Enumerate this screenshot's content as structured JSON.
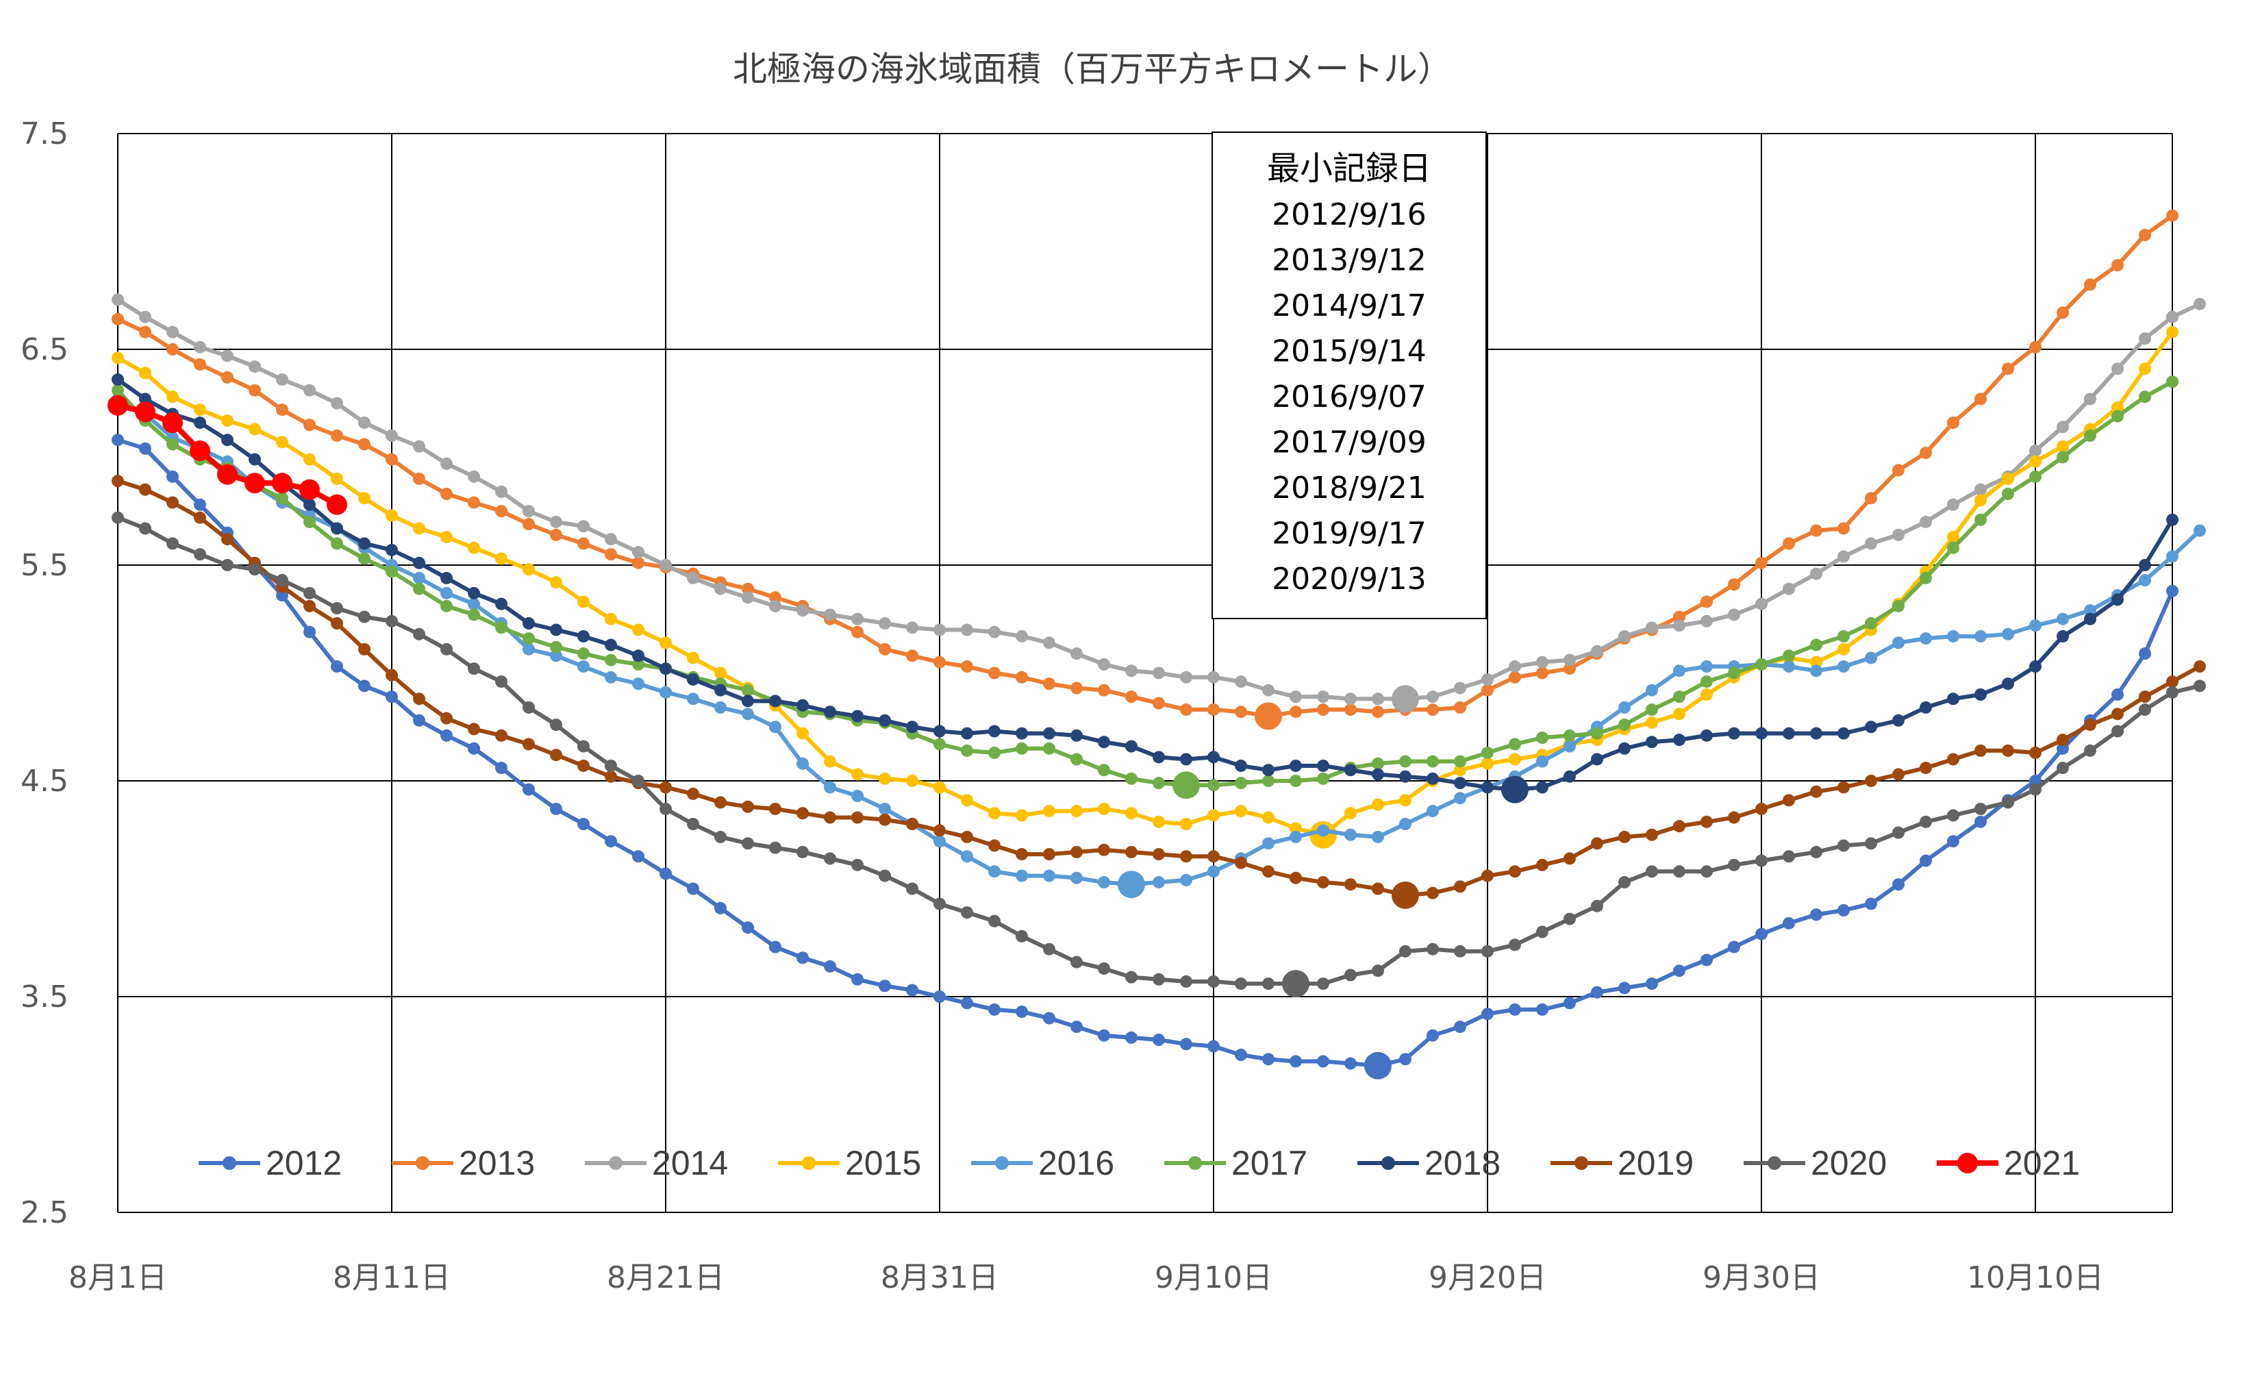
{
  "chart_data": {
    "type": "line",
    "title": "北極海の海氷域面積（百万平方キロメートル）",
    "ylim": [
      2.5,
      7.5
    ],
    "yticks": [
      "2.5",
      "3.5",
      "4.5",
      "5.5",
      "6.5",
      "7.5"
    ],
    "xticks": [
      "8月1日",
      "8月11日",
      "8月21日",
      "8月31日",
      "9月10日",
      "9月20日",
      "9月30日",
      "10月10日"
    ],
    "x_range": [
      0,
      75
    ],
    "grid": true,
    "legend_position": "bottom",
    "annotation": {
      "title": "最小記録日",
      "lines": [
        "2012/9/16",
        "2013/9/12",
        "2014/9/17",
        "2015/9/14",
        "2016/9/07",
        "2017/9/09",
        "2018/9/21",
        "2019/9/17",
        "2020/9/13"
      ]
    },
    "series": [
      {
        "name": "2012",
        "color": "#4472C4",
        "min_day": 46,
        "values": [
          6.08,
          6.04,
          5.91,
          5.78,
          5.65,
          5.5,
          5.36,
          5.19,
          5.03,
          4.94,
          4.89,
          4.78,
          4.71,
          4.65,
          4.56,
          4.46,
          4.37,
          4.3,
          4.22,
          4.15,
          4.07,
          4.0,
          3.91,
          3.82,
          3.73,
          3.68,
          3.64,
          3.58,
          3.55,
          3.53,
          3.5,
          3.47,
          3.44,
          3.43,
          3.4,
          3.36,
          3.32,
          3.31,
          3.3,
          3.28,
          3.27,
          3.23,
          3.21,
          3.2,
          3.2,
          3.19,
          3.18,
          3.21,
          3.32,
          3.36,
          3.42,
          3.44,
          3.44,
          3.47,
          3.52,
          3.54,
          3.56,
          3.62,
          3.67,
          3.73,
          3.79,
          3.84,
          3.88,
          3.9,
          3.93,
          4.02,
          4.13,
          4.22,
          4.31,
          4.41,
          4.5,
          4.65,
          4.78,
          4.9,
          5.09,
          5.38
        ]
      },
      {
        "name": "2013",
        "color": "#ED7D31",
        "min_day": 42,
        "values": [
          6.64,
          6.58,
          6.5,
          6.43,
          6.37,
          6.31,
          6.22,
          6.15,
          6.1,
          6.06,
          5.99,
          5.9,
          5.83,
          5.79,
          5.75,
          5.69,
          5.64,
          5.6,
          5.55,
          5.51,
          5.49,
          5.46,
          5.42,
          5.39,
          5.35,
          5.31,
          5.25,
          5.19,
          5.11,
          5.08,
          5.05,
          5.03,
          5.0,
          4.98,
          4.95,
          4.93,
          4.92,
          4.89,
          4.86,
          4.83,
          4.83,
          4.82,
          4.8,
          4.82,
          4.83,
          4.83,
          4.82,
          4.83,
          4.83,
          4.84,
          4.92,
          4.98,
          5.0,
          5.02,
          5.09,
          5.16,
          5.2,
          5.26,
          5.33,
          5.41,
          5.51,
          5.6,
          5.66,
          5.67,
          5.81,
          5.94,
          6.02,
          6.16,
          6.27,
          6.41,
          6.51,
          6.67,
          6.8,
          6.89,
          7.03,
          7.12
        ]
      },
      {
        "name": "2014",
        "color": "#A5A5A5",
        "min_day": 47,
        "values": [
          6.73,
          6.65,
          6.58,
          6.51,
          6.47,
          6.42,
          6.36,
          6.31,
          6.25,
          6.16,
          6.1,
          6.05,
          5.97,
          5.91,
          5.84,
          5.75,
          5.7,
          5.68,
          5.62,
          5.56,
          5.5,
          5.44,
          5.39,
          5.35,
          5.31,
          5.29,
          5.27,
          5.25,
          5.23,
          5.21,
          5.2,
          5.2,
          5.19,
          5.17,
          5.14,
          5.09,
          5.04,
          5.01,
          5.0,
          4.98,
          4.98,
          4.96,
          4.92,
          4.89,
          4.89,
          4.88,
          4.88,
          4.88,
          4.89,
          4.93,
          4.97,
          5.03,
          5.05,
          5.06,
          5.1,
          5.17,
          5.21,
          5.22,
          5.24,
          5.27,
          5.32,
          5.39,
          5.46,
          5.54,
          5.6,
          5.64,
          5.7,
          5.78,
          5.85,
          5.91,
          6.03,
          6.14,
          6.27,
          6.41,
          6.55,
          6.65,
          6.71
        ]
      },
      {
        "name": "2015",
        "color": "#FFC000",
        "min_day": 44,
        "values": [
          6.46,
          6.39,
          6.28,
          6.22,
          6.17,
          6.13,
          6.07,
          5.99,
          5.9,
          5.81,
          5.73,
          5.67,
          5.63,
          5.58,
          5.53,
          5.48,
          5.42,
          5.33,
          5.25,
          5.2,
          5.14,
          5.07,
          5.0,
          4.93,
          4.85,
          4.72,
          4.59,
          4.53,
          4.51,
          4.5,
          4.47,
          4.41,
          4.35,
          4.34,
          4.36,
          4.36,
          4.37,
          4.35,
          4.31,
          4.3,
          4.34,
          4.36,
          4.33,
          4.28,
          4.25,
          4.35,
          4.39,
          4.41,
          4.5,
          4.55,
          4.58,
          4.6,
          4.62,
          4.67,
          4.69,
          4.74,
          4.77,
          4.81,
          4.9,
          4.98,
          5.04,
          5.07,
          5.05,
          5.11,
          5.2,
          5.32,
          5.47,
          5.63,
          5.8,
          5.9,
          5.98,
          6.05,
          6.13,
          6.23,
          6.41,
          6.58
        ]
      },
      {
        "name": "2016",
        "color": "#5B9BD5",
        "min_day": 37,
        "values": [
          6.27,
          6.2,
          6.09,
          6.04,
          5.98,
          5.87,
          5.79,
          5.73,
          5.67,
          5.58,
          5.5,
          5.44,
          5.37,
          5.32,
          5.23,
          5.11,
          5.08,
          5.03,
          4.98,
          4.95,
          4.91,
          4.88,
          4.84,
          4.81,
          4.75,
          4.58,
          4.47,
          4.43,
          4.37,
          4.3,
          4.22,
          4.15,
          4.08,
          4.06,
          4.06,
          4.05,
          4.03,
          4.02,
          4.03,
          4.04,
          4.08,
          4.14,
          4.21,
          4.24,
          4.27,
          4.25,
          4.24,
          4.3,
          4.36,
          4.42,
          4.47,
          4.52,
          4.59,
          4.66,
          4.75,
          4.84,
          4.92,
          5.01,
          5.03,
          5.03,
          5.04,
          5.03,
          5.01,
          5.03,
          5.07,
          5.14,
          5.16,
          5.17,
          5.17,
          5.18,
          5.22,
          5.25,
          5.29,
          5.36,
          5.43,
          5.54,
          5.66
        ]
      },
      {
        "name": "2017",
        "color": "#70AD47",
        "min_day": 39,
        "values": [
          6.31,
          6.17,
          6.06,
          5.99,
          5.95,
          5.87,
          5.81,
          5.7,
          5.6,
          5.53,
          5.47,
          5.39,
          5.31,
          5.27,
          5.21,
          5.16,
          5.12,
          5.09,
          5.06,
          5.04,
          5.02,
          4.98,
          4.95,
          4.92,
          4.87,
          4.82,
          4.81,
          4.78,
          4.77,
          4.72,
          4.67,
          4.64,
          4.63,
          4.65,
          4.65,
          4.6,
          4.55,
          4.51,
          4.49,
          4.48,
          4.48,
          4.49,
          4.5,
          4.5,
          4.51,
          4.56,
          4.58,
          4.59,
          4.59,
          4.59,
          4.63,
          4.67,
          4.7,
          4.71,
          4.72,
          4.76,
          4.83,
          4.89,
          4.96,
          5.0,
          5.04,
          5.08,
          5.13,
          5.17,
          5.23,
          5.31,
          5.44,
          5.58,
          5.71,
          5.83,
          5.91,
          6.0,
          6.1,
          6.19,
          6.28,
          6.35
        ]
      },
      {
        "name": "2018",
        "color": "#264478",
        "min_day": 51,
        "values": [
          6.36,
          6.27,
          6.2,
          6.16,
          6.08,
          5.99,
          5.88,
          5.78,
          5.67,
          5.6,
          5.57,
          5.51,
          5.44,
          5.37,
          5.32,
          5.23,
          5.2,
          5.17,
          5.13,
          5.08,
          5.02,
          4.97,
          4.92,
          4.87,
          4.87,
          4.85,
          4.82,
          4.8,
          4.78,
          4.75,
          4.73,
          4.72,
          4.73,
          4.72,
          4.72,
          4.71,
          4.68,
          4.66,
          4.61,
          4.6,
          4.61,
          4.57,
          4.55,
          4.57,
          4.57,
          4.55,
          4.53,
          4.52,
          4.51,
          4.49,
          4.47,
          4.46,
          4.47,
          4.52,
          4.6,
          4.65,
          4.68,
          4.69,
          4.71,
          4.72,
          4.72,
          4.72,
          4.72,
          4.72,
          4.75,
          4.78,
          4.84,
          4.88,
          4.9,
          4.95,
          5.03,
          5.17,
          5.25,
          5.34,
          5.5,
          5.71
        ]
      },
      {
        "name": "2019",
        "color": "#9E480E",
        "min_day": 47,
        "values": [
          5.89,
          5.85,
          5.79,
          5.72,
          5.62,
          5.51,
          5.4,
          5.31,
          5.23,
          5.11,
          4.99,
          4.88,
          4.79,
          4.74,
          4.71,
          4.67,
          4.62,
          4.57,
          4.52,
          4.49,
          4.47,
          4.44,
          4.4,
          4.38,
          4.37,
          4.35,
          4.33,
          4.33,
          4.32,
          4.3,
          4.27,
          4.24,
          4.2,
          4.16,
          4.16,
          4.17,
          4.18,
          4.17,
          4.16,
          4.15,
          4.15,
          4.12,
          4.08,
          4.05,
          4.03,
          4.02,
          4.0,
          3.97,
          3.98,
          4.01,
          4.06,
          4.08,
          4.11,
          4.14,
          4.21,
          4.24,
          4.25,
          4.29,
          4.31,
          4.33,
          4.37,
          4.41,
          4.45,
          4.47,
          4.5,
          4.53,
          4.56,
          4.6,
          4.64,
          4.64,
          4.63,
          4.69,
          4.76,
          4.81,
          4.89,
          4.96,
          5.03
        ]
      },
      {
        "name": "2020",
        "color": "#636363",
        "min_day": 43,
        "values": [
          5.72,
          5.67,
          5.6,
          5.55,
          5.5,
          5.48,
          5.43,
          5.37,
          5.3,
          5.26,
          5.24,
          5.18,
          5.11,
          5.02,
          4.96,
          4.84,
          4.76,
          4.66,
          4.57,
          4.5,
          4.37,
          4.3,
          4.24,
          4.21,
          4.19,
          4.17,
          4.14,
          4.11,
          4.06,
          4.0,
          3.93,
          3.89,
          3.85,
          3.78,
          3.72,
          3.66,
          3.63,
          3.59,
          3.58,
          3.57,
          3.57,
          3.56,
          3.56,
          3.56,
          3.56,
          3.6,
          3.62,
          3.71,
          3.72,
          3.71,
          3.71,
          3.74,
          3.8,
          3.86,
          3.92,
          4.03,
          4.08,
          4.08,
          4.08,
          4.11,
          4.13,
          4.15,
          4.17,
          4.2,
          4.21,
          4.26,
          4.31,
          4.34,
          4.37,
          4.4,
          4.46,
          4.56,
          4.64,
          4.73,
          4.83,
          4.91,
          4.94
        ]
      },
      {
        "name": "2021",
        "color": "#FF0000",
        "values": [
          6.24,
          6.21,
          6.16,
          6.03,
          5.92,
          5.88,
          5.88,
          5.85,
          5.78
        ]
      }
    ]
  }
}
